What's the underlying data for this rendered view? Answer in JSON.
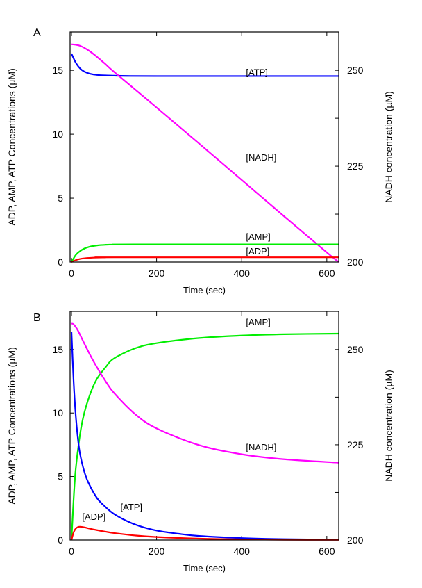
{
  "chart_data": [
    {
      "type": "line",
      "panel_label": "A",
      "xlabel": "Time (sec)",
      "ylabel": "ADP, AMP, ATP Concentrations (µM)",
      "y2label": "NADH concentration (µM)",
      "xlim": [
        0,
        628
      ],
      "ylim": [
        0,
        18
      ],
      "y2lim": [
        200,
        260
      ],
      "xticks": [
        0,
        200,
        400,
        600
      ],
      "yticks": [
        0,
        5,
        10,
        15
      ],
      "y2ticks": [
        200,
        225,
        250
      ],
      "series": [
        {
          "name": "[ATP]",
          "axis": "left",
          "color": "#0000ff",
          "x": [
            0,
            10,
            20,
            30,
            45,
            60,
            80,
            100,
            130,
            200,
            400,
            628
          ],
          "y": [
            16.3,
            15.6,
            15.15,
            14.9,
            14.72,
            14.64,
            14.6,
            14.58,
            14.56,
            14.55,
            14.55,
            14.55
          ],
          "label_at": [
            410,
            14.6
          ]
        },
        {
          "name": "[NADH]",
          "axis": "right",
          "color": "#ff00ff",
          "x": [
            0,
            20,
            40,
            60,
            80,
            100,
            200,
            300,
            400,
            500,
            600,
            628
          ],
          "y": [
            256.8,
            256.4,
            255.2,
            253.5,
            251.6,
            249.6,
            240.3,
            230.9,
            221.4,
            211.9,
            202.5,
            200.0
          ],
          "label_at": [
            410,
            226.5
          ]
        },
        {
          "name": "[AMP]",
          "axis": "left",
          "color": "#00ee00",
          "x": [
            0,
            10,
            20,
            30,
            45,
            60,
            80,
            100,
            150,
            628
          ],
          "y": [
            0,
            0.55,
            0.85,
            1.05,
            1.22,
            1.3,
            1.35,
            1.37,
            1.38,
            1.38
          ],
          "label_at": [
            410,
            1.75
          ]
        },
        {
          "name": "[ADP]",
          "axis": "left",
          "color": "#ff0000",
          "x": [
            0,
            10,
            20,
            30,
            45,
            60,
            80,
            100,
            628
          ],
          "y": [
            0,
            0.15,
            0.24,
            0.29,
            0.33,
            0.35,
            0.36,
            0.37,
            0.37
          ],
          "label_at": [
            410,
            0.6
          ]
        }
      ]
    },
    {
      "type": "line",
      "panel_label": "B",
      "xlabel": "Time (sec)",
      "ylabel": "ADP, AMP, ATP Concentrations (µM)",
      "y2label": "NADH concentration (µM)",
      "xlim": [
        0,
        628
      ],
      "ylim": [
        0,
        18
      ],
      "y2lim": [
        200,
        260
      ],
      "xticks": [
        0,
        200,
        400,
        600
      ],
      "yticks": [
        0,
        5,
        10,
        15
      ],
      "y2ticks": [
        200,
        225,
        250
      ],
      "series": [
        {
          "name": "[AMP]",
          "axis": "left",
          "color": "#00ee00",
          "x": [
            0,
            5,
            10,
            20,
            30,
            45,
            60,
            80,
            100,
            150,
            200,
            300,
            400,
            500,
            628
          ],
          "y": [
            0,
            3.2,
            5.6,
            8.3,
            10.0,
            11.6,
            12.7,
            13.6,
            14.3,
            15.1,
            15.5,
            15.9,
            16.1,
            16.2,
            16.25
          ],
          "label_at": [
            410,
            16.9
          ]
        },
        {
          "name": "[NADH]",
          "axis": "right",
          "color": "#ff00ff",
          "x": [
            0,
            5,
            15,
            30,
            45,
            60,
            80,
            100,
            150,
            200,
            300,
            400,
            500,
            628
          ],
          "y": [
            256.8,
            256.6,
            255.0,
            251.6,
            248.3,
            245.3,
            241.7,
            238.6,
            233.0,
            229.3,
            224.9,
            222.5,
            221.2,
            220.3
          ],
          "label_at": [
            410,
            223.5
          ]
        },
        {
          "name": "[ATP]",
          "axis": "left",
          "color": "#0000ff",
          "x": [
            0,
            5,
            10,
            15,
            20,
            30,
            40,
            60,
            80,
            100,
            130,
            160,
            200,
            250,
            300,
            400,
            500,
            628
          ],
          "y": [
            16.4,
            12.5,
            9.8,
            8.0,
            6.8,
            5.4,
            4.5,
            3.3,
            2.6,
            2.05,
            1.5,
            1.1,
            0.75,
            0.5,
            0.32,
            0.15,
            0.07,
            0.03
          ],
          "label_at": [
            115,
            2.35
          ]
        },
        {
          "name": "[ADP]",
          "axis": "left",
          "color": "#ff0000",
          "x": [
            0,
            5,
            10,
            15,
            20,
            30,
            40,
            60,
            80,
            100,
            150,
            200,
            300,
            400,
            500,
            628
          ],
          "y": [
            0,
            0.6,
            0.9,
            1.02,
            1.05,
            1.0,
            0.92,
            0.78,
            0.66,
            0.55,
            0.36,
            0.24,
            0.11,
            0.05,
            0.02,
            0.01
          ],
          "label_at": [
            25,
            1.6
          ]
        }
      ]
    }
  ]
}
